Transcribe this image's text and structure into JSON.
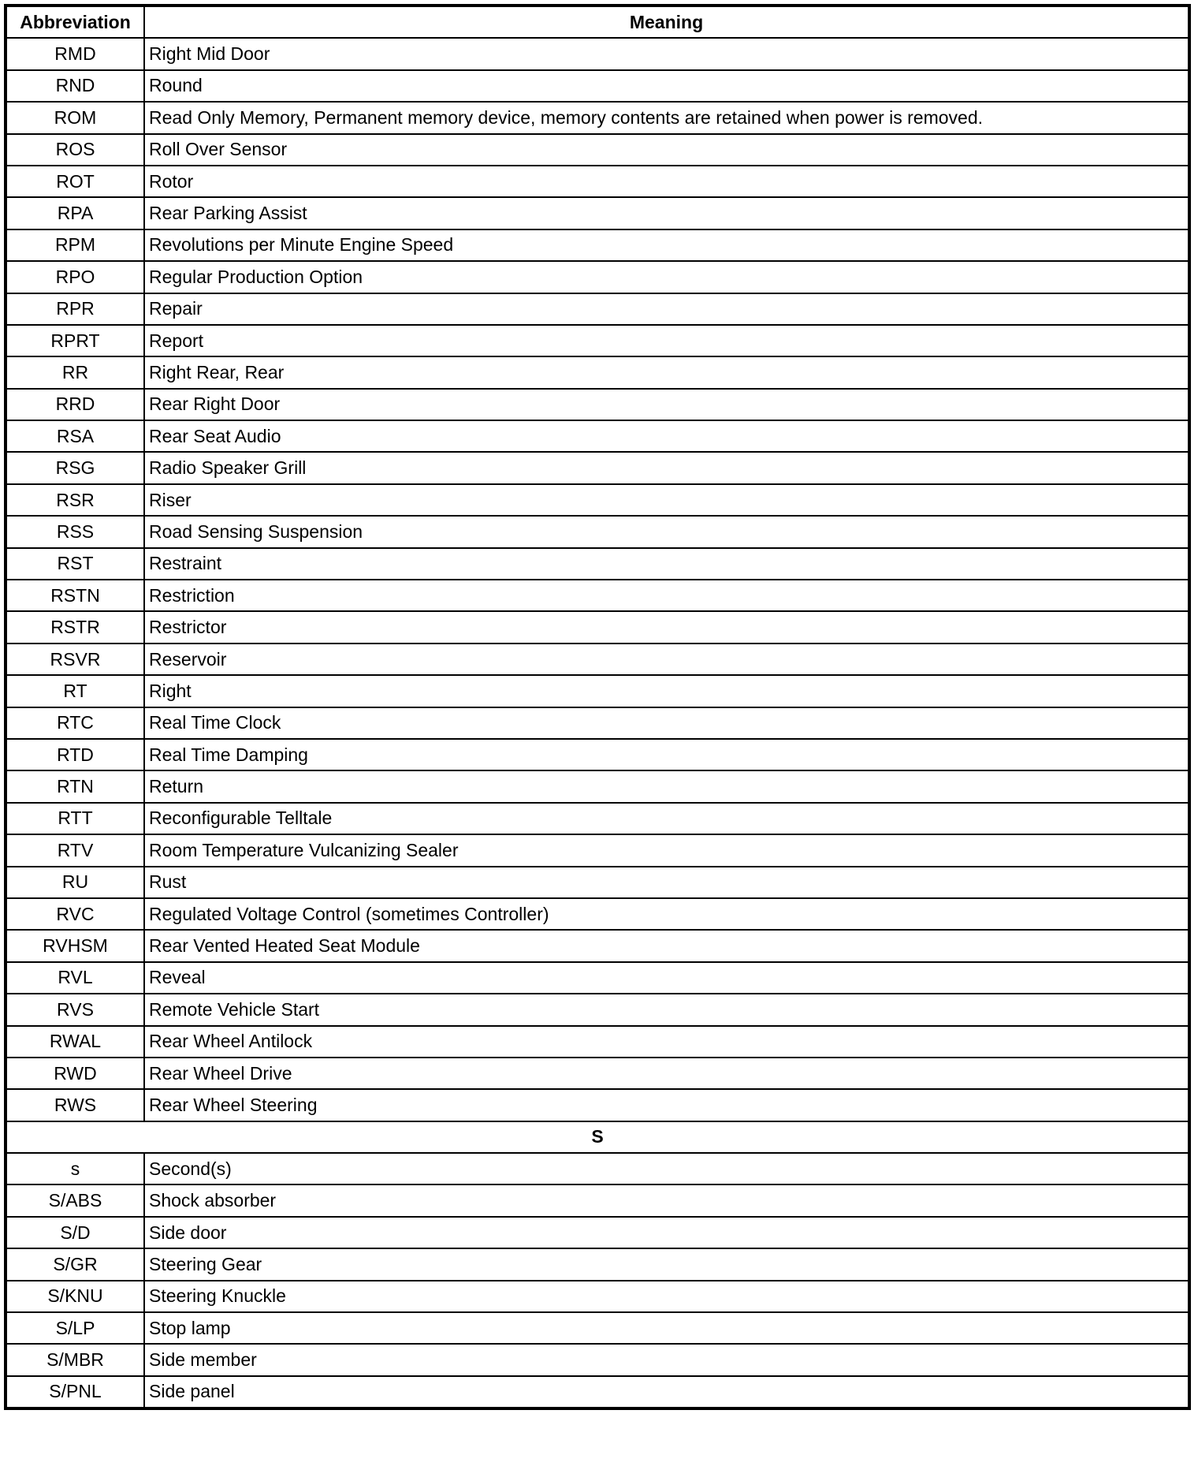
{
  "headers": {
    "abbreviation": "Abbreviation",
    "meaning": "Meaning"
  },
  "rows_r": [
    [
      "RMD",
      "Right Mid Door"
    ],
    [
      "RND",
      "Round"
    ],
    [
      "ROM",
      "Read Only Memory, Permanent memory device, memory contents are retained when power is removed."
    ],
    [
      "ROS",
      "Roll Over Sensor"
    ],
    [
      "ROT",
      "Rotor"
    ],
    [
      "RPA",
      "Rear Parking Assist"
    ],
    [
      "RPM",
      "Revolutions per Minute Engine Speed"
    ],
    [
      "RPO",
      "Regular Production Option"
    ],
    [
      "RPR",
      "Repair"
    ],
    [
      "RPRT",
      "Report"
    ],
    [
      "RR",
      "Right Rear, Rear"
    ],
    [
      "RRD",
      "Rear Right Door"
    ],
    [
      "RSA",
      "Rear Seat Audio"
    ],
    [
      "RSG",
      "Radio Speaker Grill"
    ],
    [
      "RSR",
      "Riser"
    ],
    [
      "RSS",
      "Road Sensing Suspension"
    ],
    [
      "RST",
      "Restraint"
    ],
    [
      "RSTN",
      "Restriction"
    ],
    [
      "RSTR",
      "Restrictor"
    ],
    [
      "RSVR",
      "Reservoir"
    ],
    [
      "RT",
      "Right"
    ],
    [
      "RTC",
      "Real Time Clock"
    ],
    [
      "RTD",
      "Real Time Damping"
    ],
    [
      "RTN",
      "Return"
    ],
    [
      "RTT",
      "Reconfigurable Telltale"
    ],
    [
      "RTV",
      "Room Temperature Vulcanizing Sealer"
    ],
    [
      "RU",
      "Rust"
    ],
    [
      "RVC",
      "Regulated Voltage Control (sometimes Controller)"
    ],
    [
      "RVHSM",
      "Rear Vented Heated Seat Module"
    ],
    [
      "RVL",
      "Reveal"
    ],
    [
      "RVS",
      "Remote Vehicle Start"
    ],
    [
      "RWAL",
      "Rear Wheel Antilock"
    ],
    [
      "RWD",
      "Rear Wheel Drive"
    ],
    [
      "RWS",
      "Rear Wheel Steering"
    ]
  ],
  "section_s": "S",
  "rows_s": [
    [
      "s",
      "Second(s)"
    ],
    [
      "S/ABS",
      "Shock absorber"
    ],
    [
      "S/D",
      "Side door"
    ],
    [
      "S/GR",
      "Steering Gear"
    ],
    [
      "S/KNU",
      "Steering Knuckle"
    ],
    [
      "S/LP",
      "Stop lamp"
    ],
    [
      "S/MBR",
      "Side member"
    ],
    [
      "S/PNL",
      "Side panel"
    ]
  ]
}
